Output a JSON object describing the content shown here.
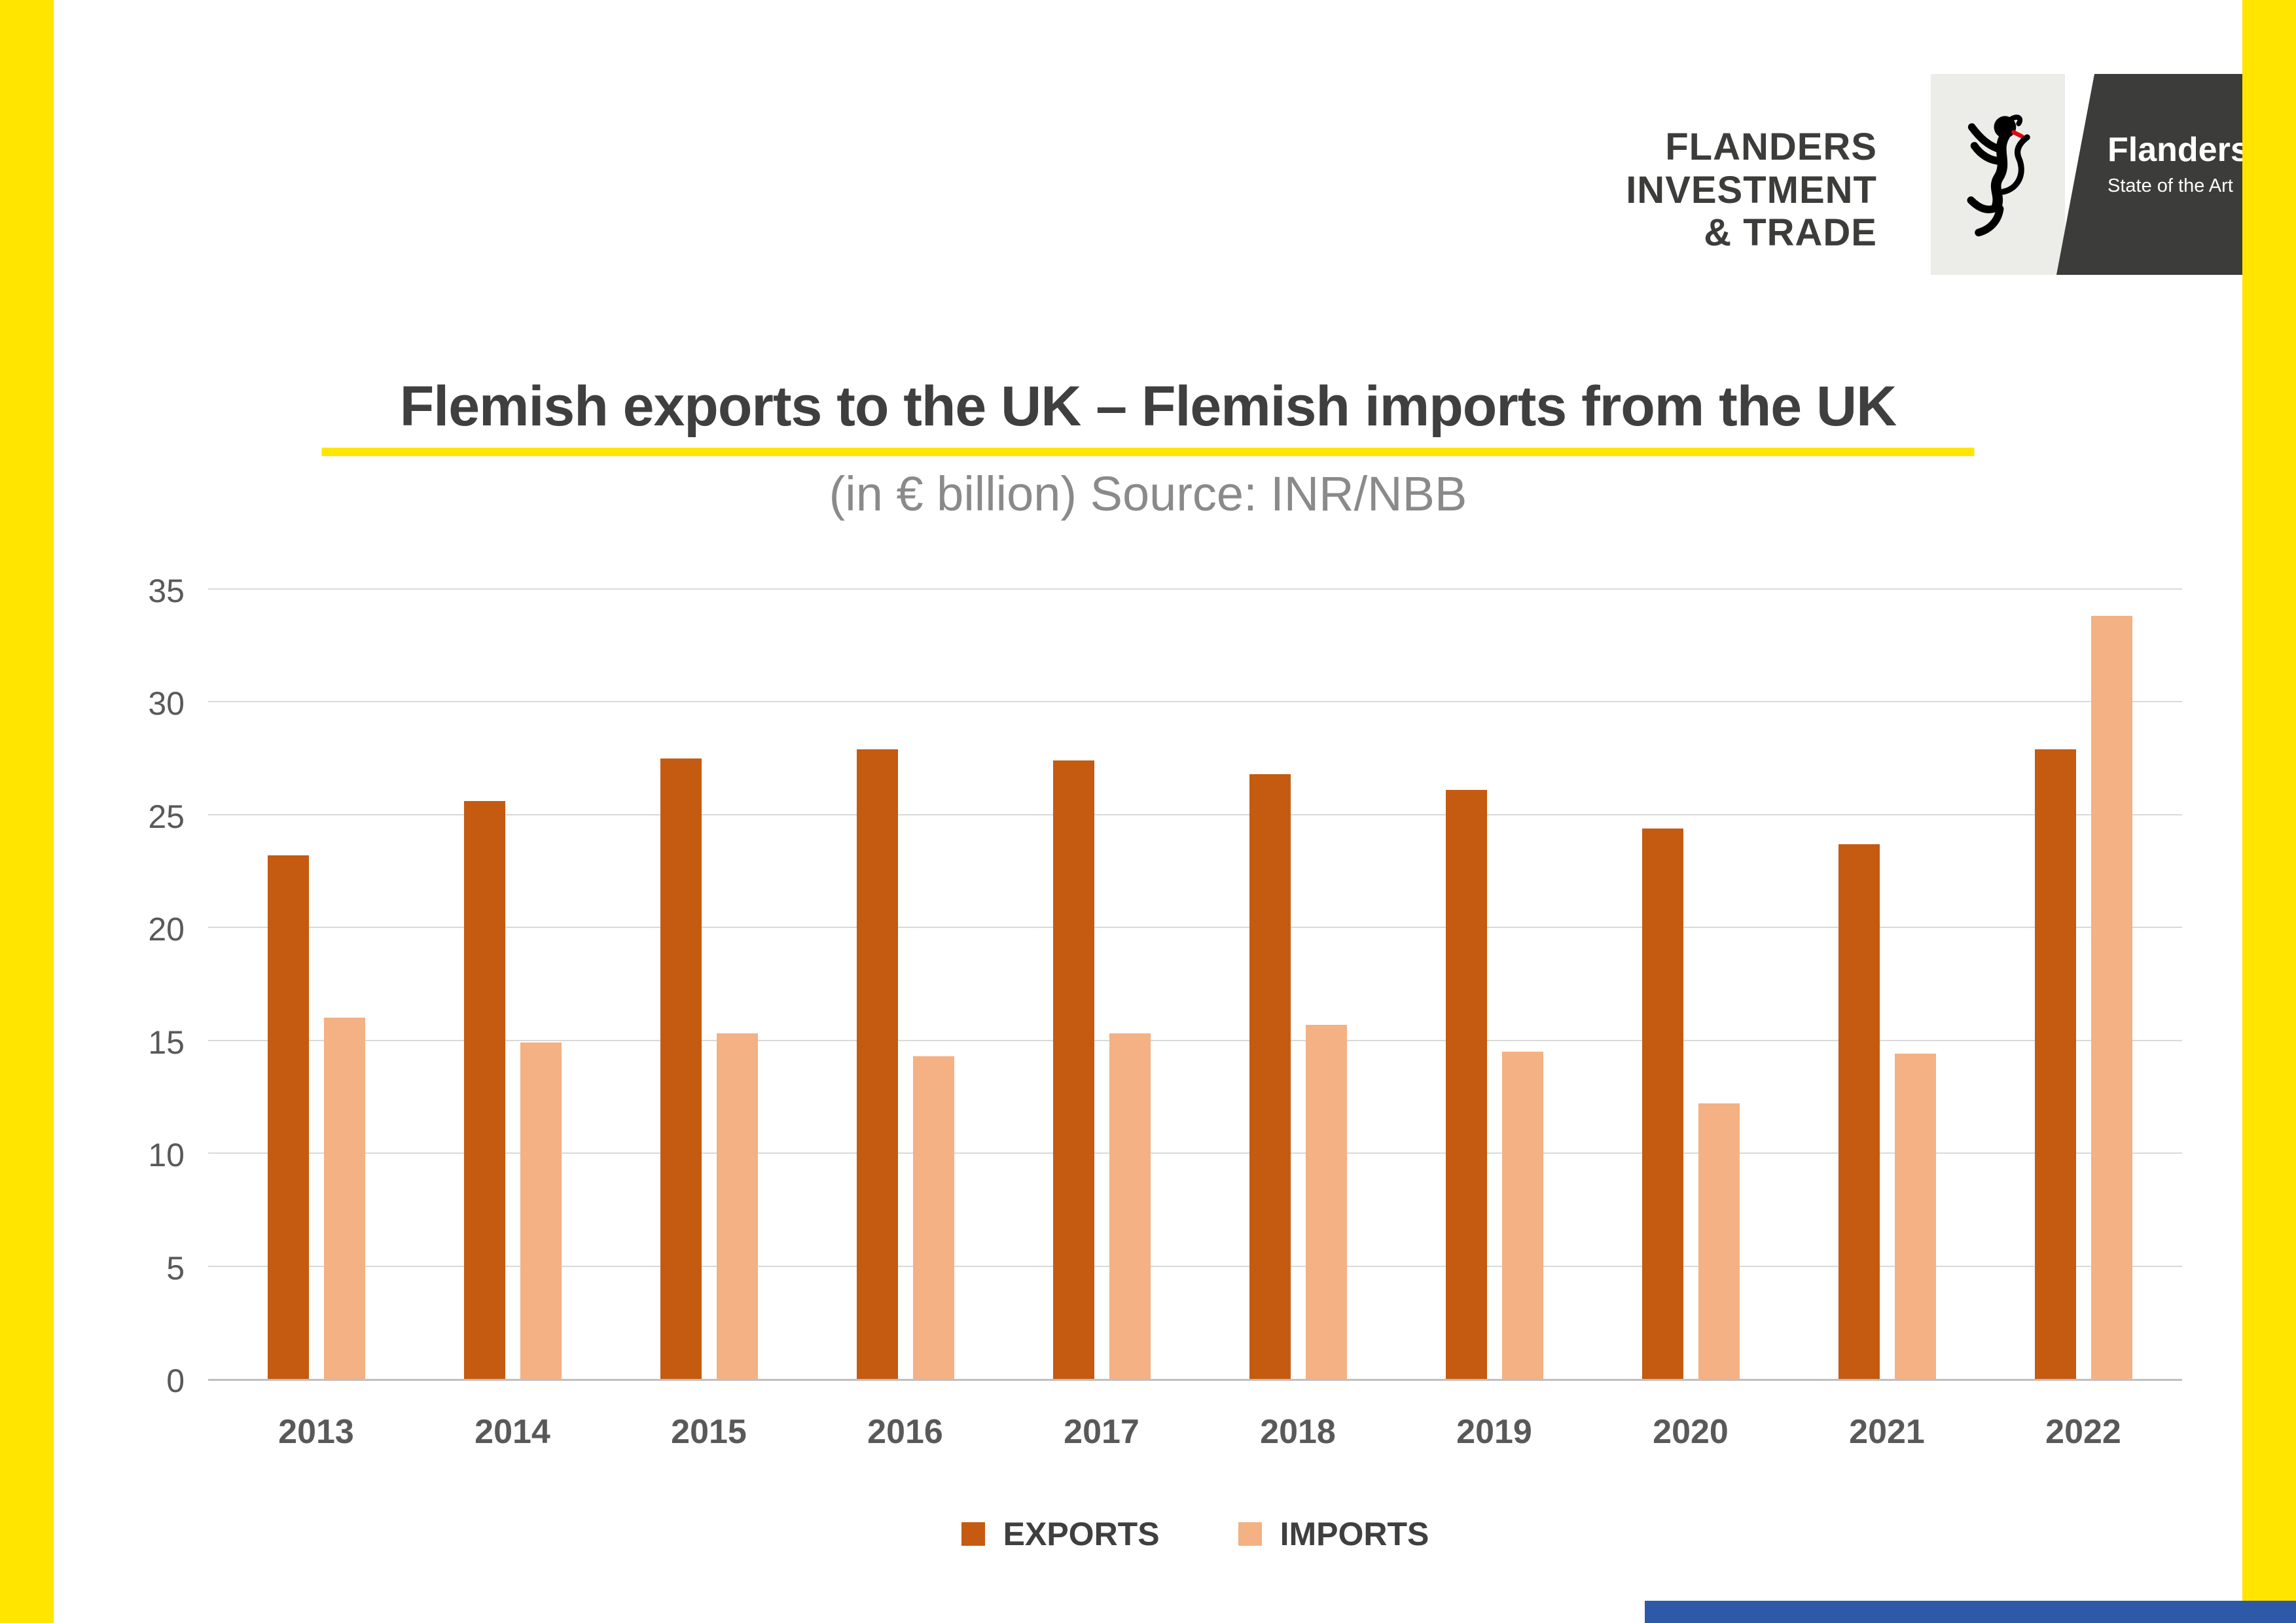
{
  "page": {
    "accent_yellow": "#ffe500",
    "corner_blue": "#2d59a8",
    "logo_tab_dark": "#3c3c3b",
    "logo_lion_box": "#ecece8"
  },
  "header": {
    "fit_logo": {
      "lines": [
        "FLANDERS",
        "INVESTMENT",
        "& TRADE"
      ]
    },
    "flanders_logo": {
      "name": "Flanders",
      "tagline": "State of the Art"
    }
  },
  "chart_data": {
    "type": "bar",
    "title": "Flemish exports to the UK – Flemish imports from the UK",
    "subtitle": "(in € billion) Source: INR/NBB",
    "categories": [
      "2013",
      "2014",
      "2015",
      "2016",
      "2017",
      "2018",
      "2019",
      "2020",
      "2021",
      "2022"
    ],
    "series": [
      {
        "name": "EXPORTS",
        "color": "#c55a11",
        "values": [
          23.2,
          25.6,
          27.5,
          27.9,
          27.4,
          26.8,
          26.1,
          24.4,
          23.7,
          27.9
        ]
      },
      {
        "name": "IMPORTS",
        "color": "#f4b183",
        "values": [
          16.0,
          14.9,
          15.3,
          14.3,
          15.3,
          15.7,
          14.5,
          12.2,
          14.4,
          33.8
        ]
      }
    ],
    "ylim": [
      0,
      35
    ],
    "yticks": [
      0,
      5,
      10,
      15,
      20,
      25,
      30,
      35
    ],
    "grid": true,
    "legend_position": "bottom"
  }
}
